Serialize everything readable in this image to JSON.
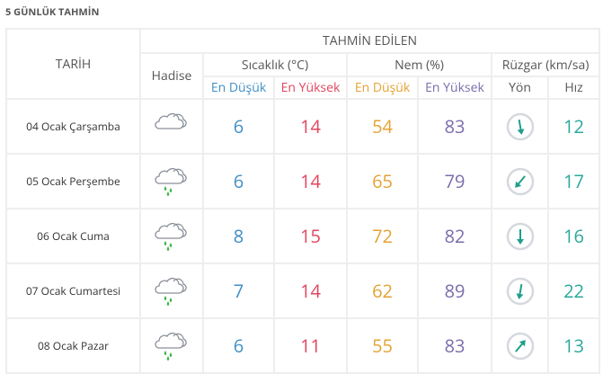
{
  "header": {
    "title": "5 GÜNLÜK TAHMİN"
  },
  "table": {
    "columns": {
      "date": "TARİH",
      "event": "Hadise",
      "forecast": "TAHMİN EDİLEN",
      "groups": [
        "Sıcaklık (°C)",
        "Nem (%)",
        "Rüzgar (km/sa)"
      ],
      "subheaders": [
        "En Düşük",
        "En Yüksek",
        "En Düşük",
        "En Yüksek",
        "Yön",
        "Hız"
      ]
    },
    "rows": [
      {
        "date": "04 Ocak Çarşamba",
        "temp_min": 6,
        "temp_max": 14,
        "hum_min": 54,
        "hum_max": 83,
        "wind_speed": 12
      },
      {
        "date": "05 Ocak Perşembe",
        "temp_min": 6,
        "temp_max": 14,
        "hum_min": 65,
        "hum_max": 79,
        "wind_speed": 17
      },
      {
        "date": "06 Ocak Cuma",
        "temp_min": 8,
        "temp_max": 15,
        "hum_min": 72,
        "hum_max": 82,
        "wind_speed": 16
      },
      {
        "date": "07 Ocak Cumartesi",
        "temp_min": 7,
        "temp_max": 14,
        "hum_min": 62,
        "hum_max": 89,
        "wind_speed": 22
      },
      {
        "date": "08 Ocak Pazar",
        "temp_min": 6,
        "temp_max": 11,
        "hum_min": 55,
        "hum_max": 83,
        "wind_speed": 13
      }
    ]
  }
}
